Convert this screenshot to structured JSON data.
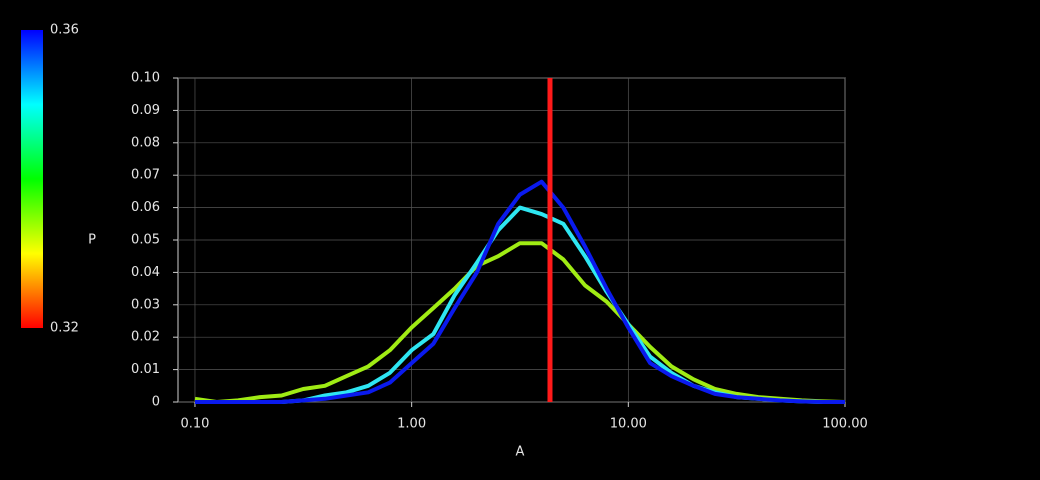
{
  "chart_data": {
    "type": "line",
    "x_label": "A",
    "log_x": true,
    "grid": true,
    "xlim": [
      0.0835,
      100
    ],
    "xticks": [
      {
        "value": 0.1,
        "label": "0.10"
      },
      {
        "value": 1,
        "label": "1.00"
      },
      {
        "value": 10,
        "label": "10.00"
      },
      {
        "value": 100,
        "label": "100.00"
      }
    ],
    "ylim": [
      0,
      0.1
    ],
    "yticks": [
      0,
      0.01,
      0.02,
      0.03,
      0.04,
      0.05,
      0.06,
      0.07,
      0.08,
      0.09,
      {
        "value": 0.1,
        "label": "0.10"
      }
    ],
    "x": [
      0.1,
      0.126,
      0.158,
      0.2,
      0.251,
      0.316,
      0.398,
      0.501,
      0.631,
      0.794,
      1,
      1.26,
      1.58,
      2,
      2.51,
      3.16,
      3.98,
      5.01,
      6.31,
      7.94,
      10,
      12.6,
      15.8,
      20,
      25.1,
      31.6,
      39.8,
      50.1,
      63.1,
      79.4,
      100
    ],
    "series": [
      {
        "color": "#a0ec14",
        "values": [
          0.001,
          0,
          0.0005,
          0.0015,
          0.002,
          0.004,
          0.005,
          0.008,
          0.011,
          0.016,
          0.023,
          0.029,
          0.035,
          0.042,
          0.045,
          0.049,
          0.049,
          0.044,
          0.036,
          0.031,
          0.024,
          0.017,
          0.011,
          0.007,
          0.004,
          0.0025,
          0.0015,
          0.001,
          0.0005,
          0.0002,
          0
        ]
      },
      {
        "color": "#2ee6f2",
        "values": [
          0,
          0,
          0,
          0,
          0,
          0.0005,
          0.002,
          0.003,
          0.005,
          0.009,
          0.016,
          0.021,
          0.033,
          0.043,
          0.053,
          0.06,
          0.058,
          0.055,
          0.045,
          0.034,
          0.024,
          0.014,
          0.009,
          0.005,
          0.003,
          0.0015,
          0.001,
          0.0005,
          0.0002,
          0,
          0
        ]
      },
      {
        "color": "#0a1aee",
        "values": [
          0,
          0,
          0,
          0,
          0,
          0.0005,
          0.001,
          0.002,
          0.003,
          0.006,
          0.012,
          0.018,
          0.029,
          0.04,
          0.055,
          0.064,
          0.068,
          0.06,
          0.048,
          0.035,
          0.023,
          0.012,
          0.008,
          0.005,
          0.0025,
          0.0015,
          0.001,
          0.0005,
          0.0002,
          0,
          0
        ]
      }
    ],
    "vline": {
      "x": 4.35,
      "color": "#ff1a1a"
    },
    "colorbar": {
      "title": "P",
      "range": [
        0.32,
        0.36
      ],
      "ticks": [
        {
          "value": 0.32,
          "label": "0.32"
        },
        {
          "value": 0.36,
          "label": "0.36"
        }
      ]
    }
  }
}
